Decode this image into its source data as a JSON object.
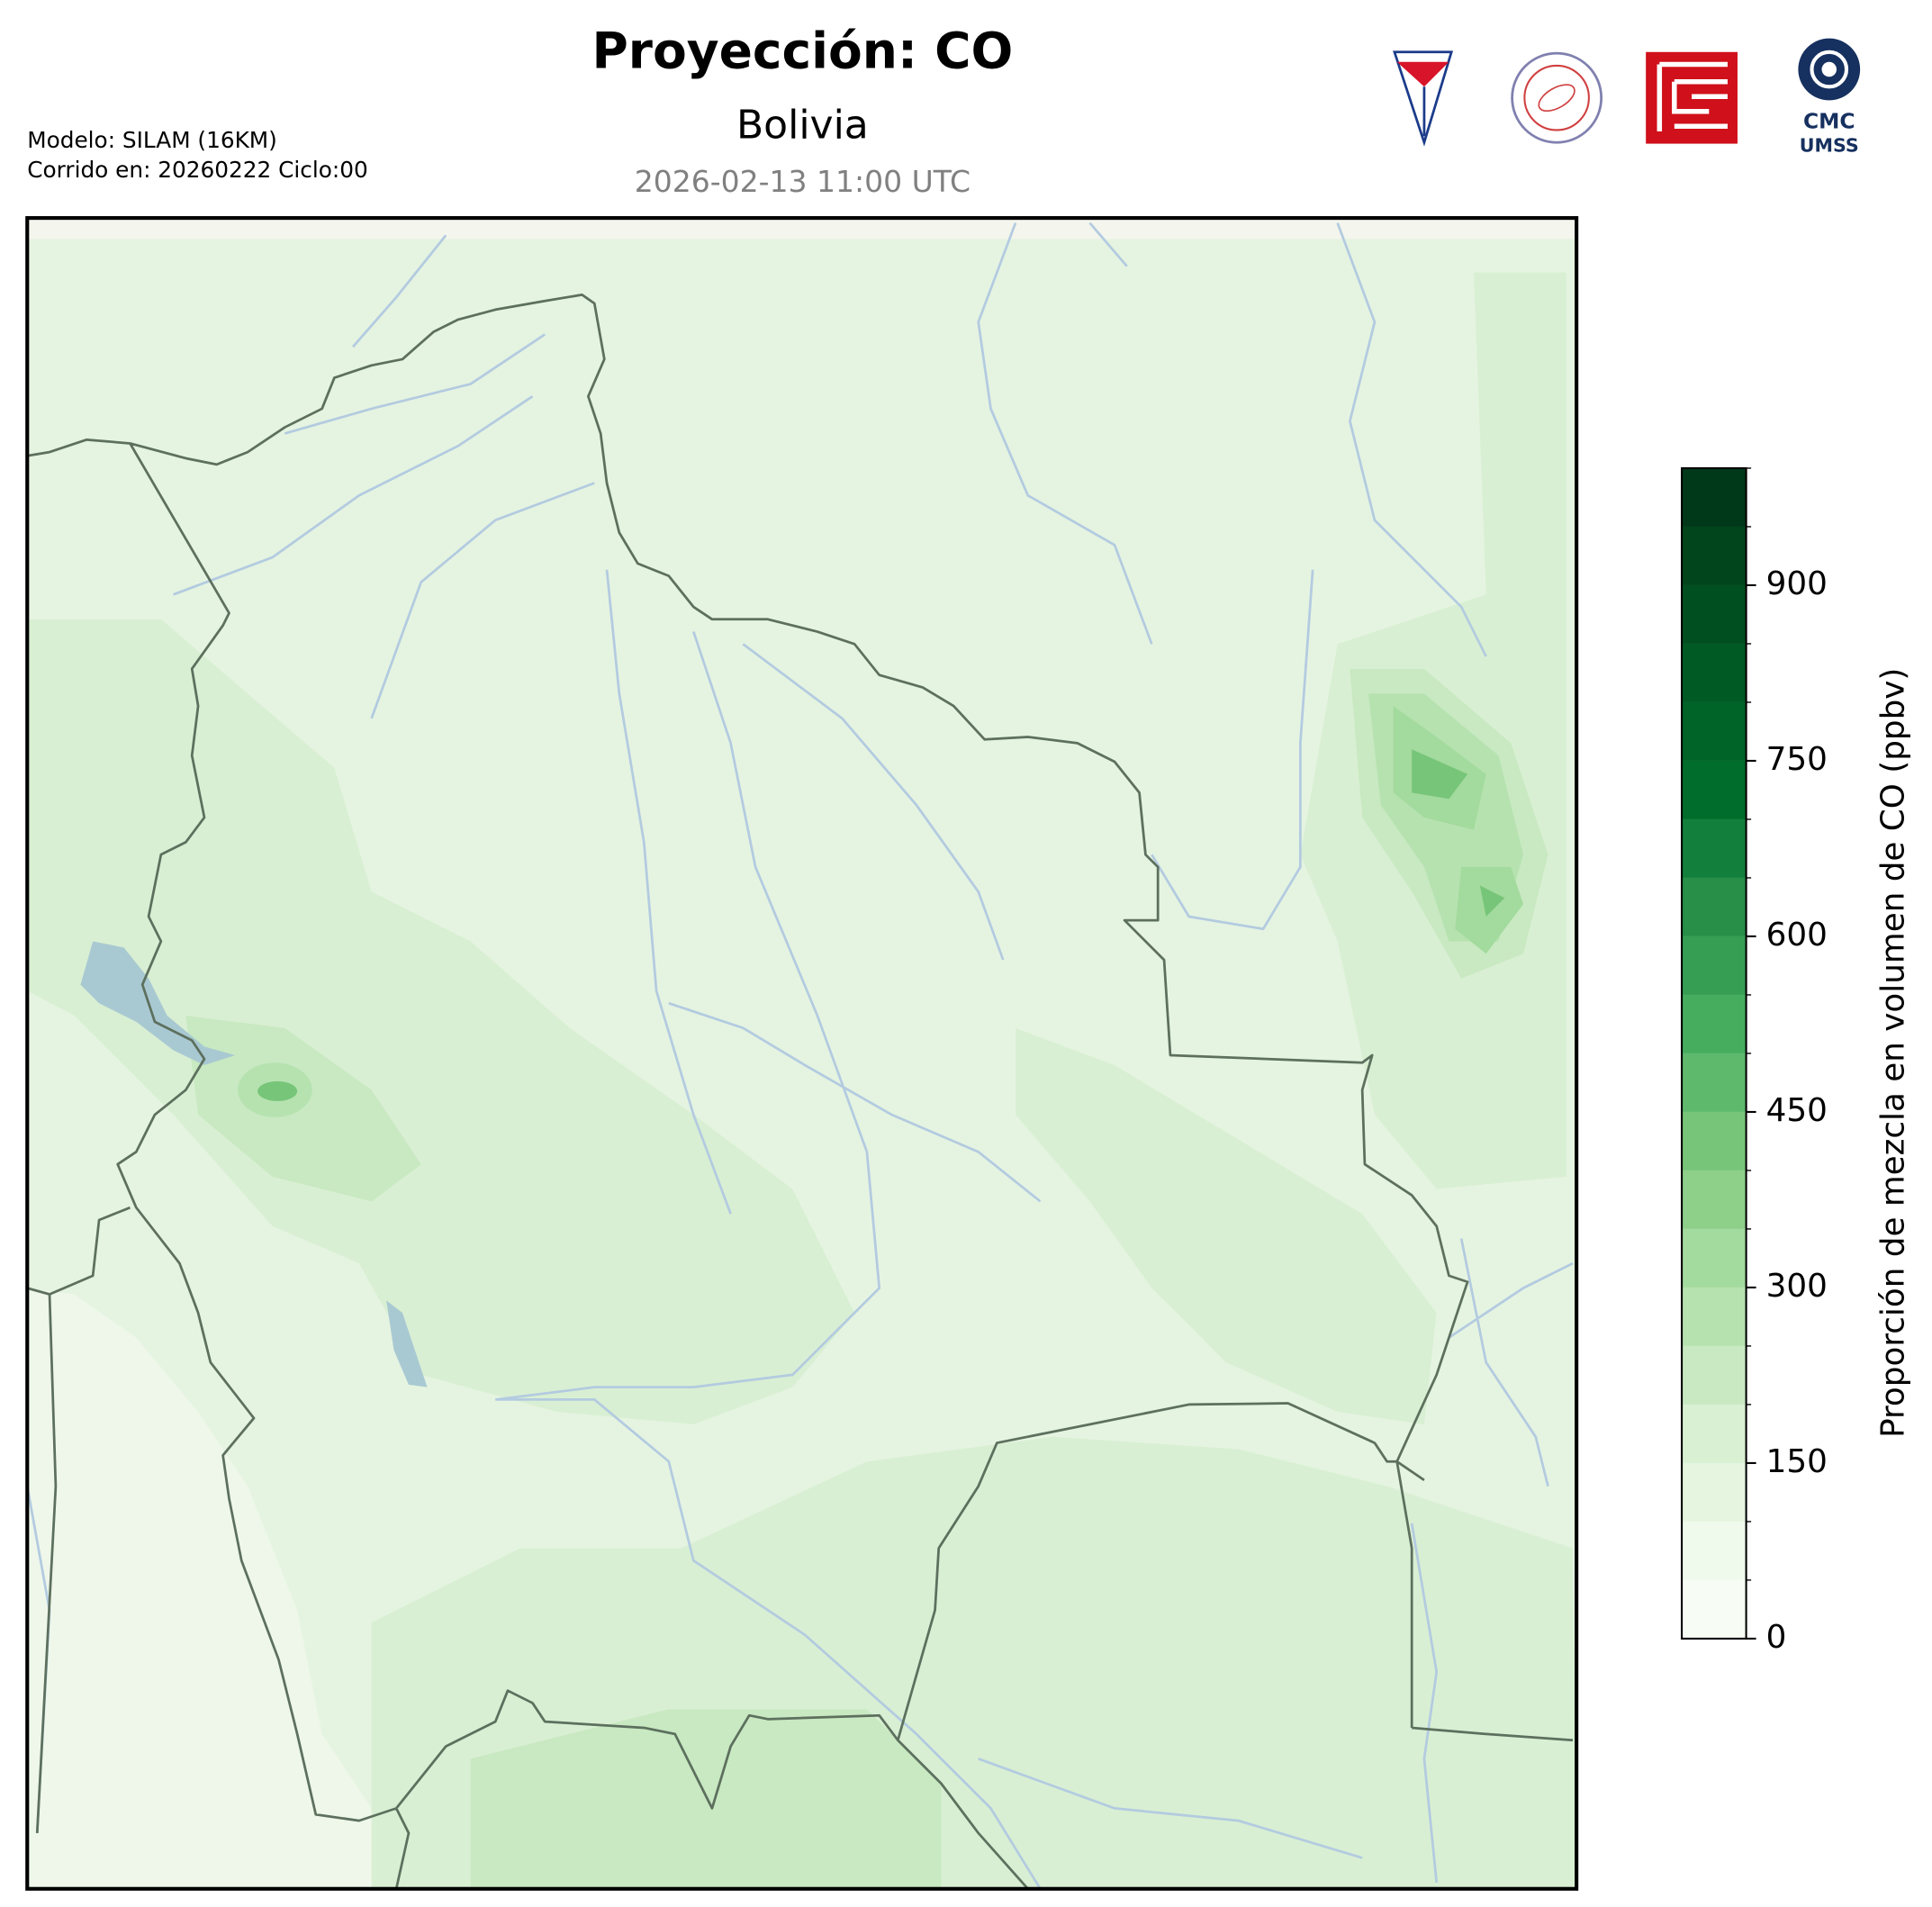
{
  "header": {
    "title": "Proyección: CO",
    "subtitle": "Bolivia",
    "datetime": "2026-02-13 11:00 UTC",
    "model": "Modelo: SILAM (16KM)",
    "run": "Corrido en: 20260222 Ciclo:00"
  },
  "logos": {
    "cmc": "CMC",
    "umss": "UMSS"
  },
  "chart_data": {
    "type": "colorbar",
    "label": "Proporción de mezcla en volumen de CO (ppbv)",
    "ylim": [
      0,
      1000
    ],
    "yticks": [
      0,
      150,
      300,
      450,
      600,
      750,
      900
    ],
    "levels": [
      0,
      50,
      100,
      150,
      200,
      250,
      300,
      350,
      400,
      450,
      500,
      550,
      600,
      650,
      700,
      750,
      800,
      850,
      900,
      950,
      1000
    ],
    "colors": [
      "#f7fcf5",
      "#eff9ec",
      "#e5f5e0",
      "#d9f0d3",
      "#c8e9c1",
      "#b6e2b0",
      "#a3da9d",
      "#8ecf8a",
      "#77c579",
      "#5fb96c",
      "#46ad5f",
      "#369e53",
      "#278f48",
      "#137f3c",
      "#006d2c",
      "#006428",
      "#005a24",
      "#004f20",
      "#00451c",
      "#00381a"
    ]
  }
}
